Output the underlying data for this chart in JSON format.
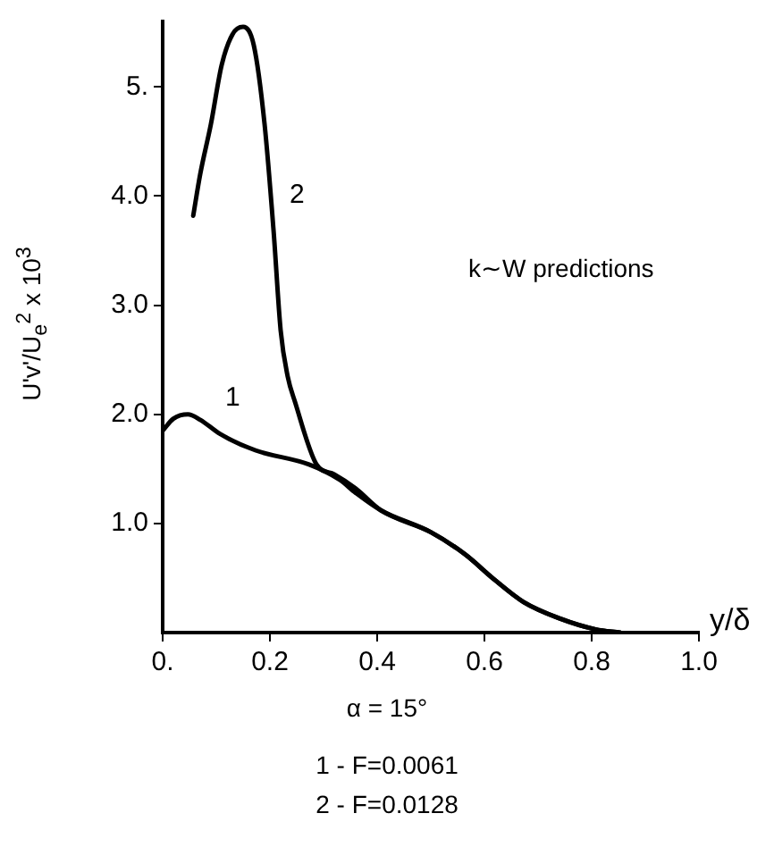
{
  "chart_data": {
    "type": "line",
    "xlabel": "y/δ",
    "ylabel": "U'v'/U$_{e}$$^{2}$ x 10$^{3}$",
    "xlim": [
      0,
      1.0
    ],
    "ylim": [
      0,
      5.6
    ],
    "xticks": [
      {
        "value": 0,
        "label": "0."
      },
      0.2,
      0.4,
      0.6,
      0.8,
      {
        "value": 1,
        "label": "1.0"
      }
    ],
    "yticks": [
      {
        "value": 1,
        "label": "1.0"
      },
      {
        "value": 2,
        "label": "2.0"
      },
      {
        "value": 3,
        "label": "3.0"
      },
      {
        "value": 4,
        "label": "4.0"
      },
      {
        "value": 5,
        "label": "5."
      }
    ],
    "series": [
      {
        "name": "1",
        "color": "#000000",
        "x": [
          0,
          0.02,
          0.047,
          0.07,
          0.107,
          0.173,
          0.273,
          0.33,
          0.36,
          0.407,
          0.5,
          0.563,
          0.62,
          0.673,
          0.74,
          0.807,
          0.853
        ],
        "values": [
          1.85,
          1.96,
          2.0,
          1.95,
          1.82,
          1.67,
          1.54,
          1.4,
          1.28,
          1.12,
          0.92,
          0.72,
          0.48,
          0.28,
          0.13,
          0.03,
          0
        ]
      },
      {
        "name": "2",
        "color": "#000000",
        "x": [
          0.057,
          0.07,
          0.09,
          0.11,
          0.13,
          0.15,
          0.17,
          0.19,
          0.207,
          0.22,
          0.233,
          0.247,
          0.287,
          0.32,
          0.36,
          0.407,
          0.5,
          0.563,
          0.62,
          0.673,
          0.74,
          0.807,
          0.853
        ],
        "values": [
          3.82,
          4.2,
          4.66,
          5.2,
          5.48,
          5.55,
          5.38,
          4.66,
          3.67,
          2.77,
          2.35,
          2.11,
          1.54,
          1.45,
          1.32,
          1.12,
          0.92,
          0.72,
          0.48,
          0.28,
          0.13,
          0.03,
          0
        ]
      }
    ],
    "annotations": [
      "k∼W predictions",
      "α = 15°",
      "1 - F=0.0061",
      "2 - F=0.0128"
    ],
    "grid": false,
    "legend": false,
    "marker": "none",
    "line_style": "solid"
  }
}
